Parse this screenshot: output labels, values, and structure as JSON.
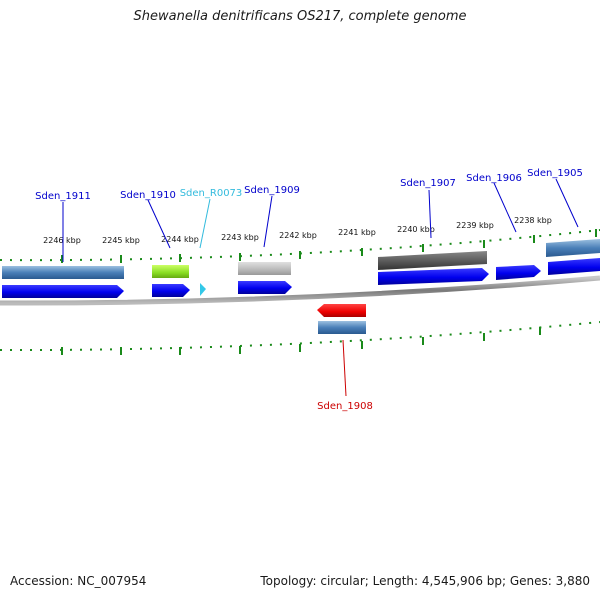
{
  "title": "Shewanella denitrificans OS217, complete genome",
  "footer": {
    "accession": "Accession: NC_007954",
    "topology": "Topology: circular; Length: 4,545,906 bp; Genes: 3,880"
  },
  "ticks": [
    {
      "label": "2246 kbp"
    },
    {
      "label": "2245 kbp"
    },
    {
      "label": "2244 kbp"
    },
    {
      "label": "2243 kbp"
    },
    {
      "label": "2242 kbp"
    },
    {
      "label": "2241 kbp"
    },
    {
      "label": "2240 kbp"
    },
    {
      "label": "2239 kbp"
    },
    {
      "label": "2238 kbp"
    }
  ],
  "genes": [
    {
      "name": "Sden_1911",
      "color": "#0000cc"
    },
    {
      "name": "Sden_1910",
      "color": "#0000cc"
    },
    {
      "name": "Sden_R0073",
      "color": "#33bbdd"
    },
    {
      "name": "Sden_1909",
      "color": "#0000cc"
    },
    {
      "name": "Sden_1908",
      "color": "#cc0000"
    },
    {
      "name": "Sden_1907",
      "color": "#0000cc"
    },
    {
      "name": "Sden_1906",
      "color": "#0000cc"
    },
    {
      "name": "Sden_1905",
      "color": "#0000cc"
    }
  ]
}
